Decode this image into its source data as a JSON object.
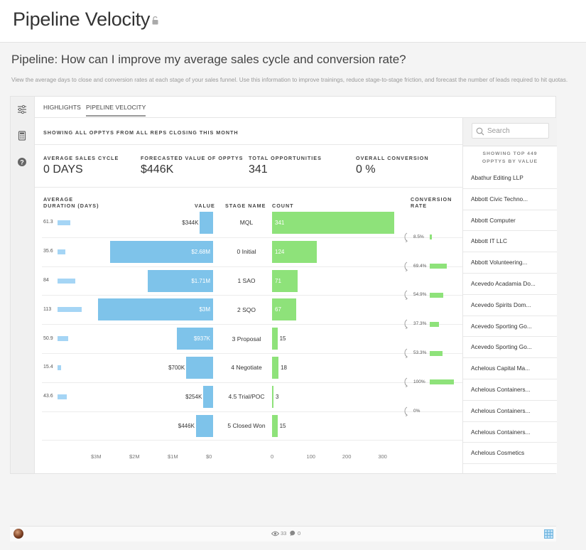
{
  "header": {
    "title": "Pipeline Velocity",
    "lock_icon": "lock-open-icon"
  },
  "question": "Pipeline: How can I improve my average sales cycle and conversion rate?",
  "description": "View the average days to close and conversion rates at each stage of your sales funnel. Use this information to improve trainings, reduce stage-to-stage friction, and forecast the number of leads required to hit quotas.",
  "rail_icons": [
    "sliders-icon",
    "calculator-icon",
    "help-icon"
  ],
  "tabs": [
    {
      "label": "HIGHLIGHTS",
      "active": false
    },
    {
      "label": "PIPELINE VELOCITY",
      "active": true
    }
  ],
  "filter_text": "SHOWING ALL OPPTYS FROM ALL REPS CLOSING THIS MONTH",
  "kpis": [
    {
      "label": "AVERAGE SALES CYCLE",
      "value": "0 DAYS"
    },
    {
      "label": "FORECASTED VALUE OF OPPTYS",
      "value": "$446K"
    },
    {
      "label": "TOTAL OPPORTUNITIES",
      "value": "341"
    },
    {
      "label": "OVERALL CONVERSION",
      "value": "0 %"
    }
  ],
  "columns": {
    "duration_line1": "AVERAGE",
    "duration_line2": "DURATION (DAYS)",
    "value": "VALUE",
    "stage": "STAGE NAME",
    "count": "COUNT",
    "conversion_line1": "CONVERSION",
    "conversion_line2": "RATE"
  },
  "stages": [
    {
      "duration": 61.3,
      "duration_label": "61.3",
      "value": 344,
      "value_label": "$344K",
      "name": "MQL",
      "count": 341,
      "count_label": "341"
    },
    {
      "duration": 35.6,
      "duration_label": "35.6",
      "value": 2680,
      "value_label": "$2.68M",
      "name": "0 Initial",
      "count": 124,
      "count_label": "124"
    },
    {
      "duration": 84,
      "duration_label": "84",
      "value": 1710,
      "value_label": "$1.71M",
      "name": "1 SAO",
      "count": 71,
      "count_label": "71"
    },
    {
      "duration": 113,
      "duration_label": "113",
      "value": 3000,
      "value_label": "$3M",
      "name": "2 SQO",
      "count": 67,
      "count_label": "67"
    },
    {
      "duration": 50.9,
      "duration_label": "50.9",
      "value": 937,
      "value_label": "$937K",
      "name": "3 Proposal",
      "count": 15,
      "count_label": "15"
    },
    {
      "duration": 15.4,
      "duration_label": "15.4",
      "value": 700,
      "value_label": "$700K",
      "name": "4 Negotiate",
      "count": 18,
      "count_label": "18"
    },
    {
      "duration": 43.6,
      "duration_label": "43.6",
      "value": 254,
      "value_label": "$254K",
      "name": "4.5 Trial/POC",
      "count": 3,
      "count_label": "3"
    },
    {
      "duration": null,
      "duration_label": "",
      "value": 446,
      "value_label": "$446K",
      "name": "5 Closed Won",
      "count": 15,
      "count_label": "15"
    }
  ],
  "conversions": [
    {
      "rate": 8.5,
      "label": "8.5%"
    },
    {
      "rate": 69.4,
      "label": "69.4%"
    },
    {
      "rate": 54.9,
      "label": "54.9%"
    },
    {
      "rate": 37.3,
      "label": "37.3%"
    },
    {
      "rate": 53.3,
      "label": "53.3%"
    },
    {
      "rate": 100,
      "label": "100%"
    },
    {
      "rate": 0,
      "label": "0%"
    }
  ],
  "value_axis": {
    "ticks": [
      "$3M",
      "$2M",
      "$1M",
      "$0"
    ],
    "max": 3000
  },
  "count_axis": {
    "ticks": [
      "0",
      "100",
      "200",
      "300"
    ],
    "max": 341
  },
  "duration_axis": {
    "max": 113
  },
  "colors": {
    "value_bar": "#7ec3ea",
    "duration_bar": "#a5d5f5",
    "count_bar": "#8ee27a"
  },
  "right_panel": {
    "search_placeholder": "Search",
    "showing_line1": "SHOWING TOP 449",
    "showing_line2": "OPPTYS BY VALUE",
    "opportunities": [
      "Abathur Editing LLP",
      "Abbott Civic Techno...",
      "Abbott Computer",
      "Abbott IT LLC",
      "Abbott Volunteering...",
      "Acevedo Acadamia Do...",
      "Acevedo Spirits Dom...",
      "Acevedo Sporting Go...",
      "Acevedo Sporting Go...",
      "Achelous Capital Ma...",
      "Achelous Containers...",
      "Achelous Containers...",
      "Achelous Containers...",
      "Achelous Cosmetics"
    ]
  },
  "footer": {
    "views": "33",
    "comments": "0"
  }
}
